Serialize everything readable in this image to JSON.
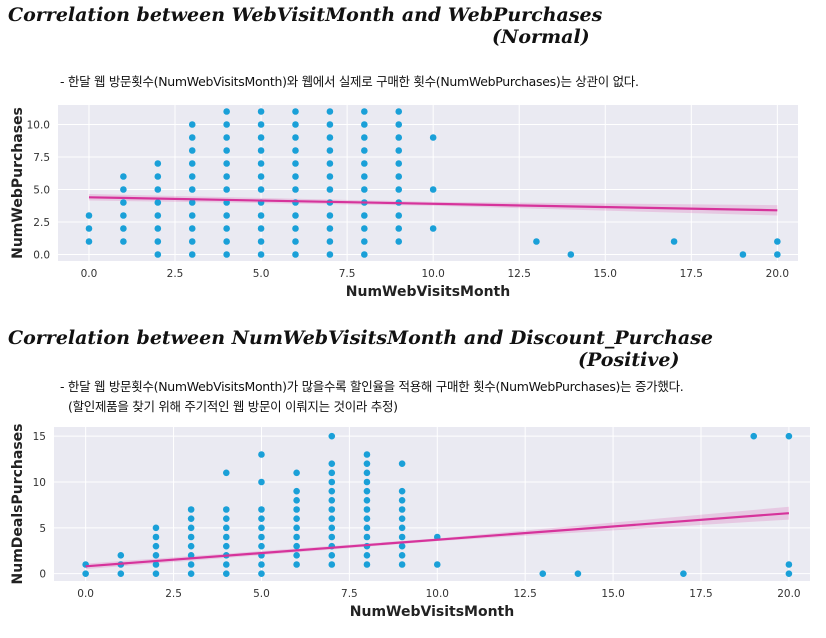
{
  "chart_data": [
    {
      "type": "scatter",
      "title_line1": "Correlation between WebVisitMonth and WebPurchases",
      "title_line2": "(Normal)",
      "notes": [
        "- 한달 웹 방문횟수(NumWebVisitsMonth)와 웹에서 실제로 구매한 횟수(NumWebPurchases)는 상관이 없다."
      ],
      "xlabel": "NumWebVisitsMonth",
      "ylabel": "NumWebPurchases",
      "xlim": [
        -0.9,
        20.6
      ],
      "ylim": [
        -0.5,
        11.5
      ],
      "xticks": [
        0.0,
        2.5,
        5.0,
        7.5,
        10.0,
        12.5,
        15.0,
        17.5,
        20.0
      ],
      "xtick_labels": [
        "0.0",
        "2.5",
        "5.0",
        "7.5",
        "10.0",
        "12.5",
        "15.0",
        "17.5",
        "20.0"
      ],
      "yticks": [
        0.0,
        2.5,
        5.0,
        7.5,
        10.0
      ],
      "ytick_labels": [
        "0.0",
        "2.5",
        "5.0",
        "7.5",
        "10.0"
      ],
      "grid": true,
      "point_color": "#1aa0d8",
      "regression_color": "#d6339b",
      "regression": {
        "x": [
          0,
          20
        ],
        "y": [
          4.4,
          3.4
        ],
        "ci": [
          [
            0,
            4.15,
            4.65
          ],
          [
            10,
            3.75,
            4.05
          ],
          [
            20,
            3.0,
            3.8
          ]
        ]
      },
      "points": [
        {
          "x": 0,
          "y": [
            1,
            2,
            3
          ]
        },
        {
          "x": 1,
          "y": [
            1,
            2,
            3,
            4,
            5,
            6
          ]
        },
        {
          "x": 2,
          "y": [
            0,
            1,
            2,
            3,
            4,
            5,
            6,
            7
          ]
        },
        {
          "x": 3,
          "y": [
            0,
            1,
            2,
            3,
            4,
            5,
            6,
            7,
            8,
            9,
            10
          ]
        },
        {
          "x": 4,
          "y": [
            0,
            1,
            2,
            3,
            4,
            5,
            6,
            7,
            8,
            9,
            10,
            11
          ]
        },
        {
          "x": 5,
          "y": [
            0,
            1,
            2,
            3,
            4,
            5,
            6,
            7,
            8,
            9,
            10,
            11
          ]
        },
        {
          "x": 6,
          "y": [
            0,
            1,
            2,
            3,
            4,
            5,
            6,
            7,
            8,
            9,
            10,
            11
          ]
        },
        {
          "x": 7,
          "y": [
            0,
            1,
            2,
            3,
            4,
            5,
            6,
            7,
            8,
            9,
            10,
            11
          ]
        },
        {
          "x": 8,
          "y": [
            0,
            1,
            2,
            3,
            4,
            5,
            6,
            7,
            8,
            9,
            10,
            11
          ]
        },
        {
          "x": 9,
          "y": [
            1,
            2,
            3,
            4,
            5,
            6,
            7,
            8,
            9,
            10,
            11
          ]
        },
        {
          "x": 10,
          "y": [
            2,
            5,
            9
          ]
        },
        {
          "x": 13,
          "y": [
            1
          ]
        },
        {
          "x": 14,
          "y": [
            0
          ]
        },
        {
          "x": 17,
          "y": [
            1
          ]
        },
        {
          "x": 19,
          "y": [
            0
          ]
        },
        {
          "x": 20,
          "y": [
            0,
            1
          ]
        }
      ]
    },
    {
      "type": "scatter",
      "title_line1": "Correlation between NumWebVisitsMonth and Discount_Purchase",
      "title_line2": "(Positive)",
      "notes": [
        "- 한달 웹 방문횟수(NumWebVisitsMonth)가 많을수록 할인율을 적용해 구매한 횟수(NumWebPurchases)는 증가했다.",
        "(할인제품을 찾기 위해 주기적인 웹 방문이 이뤄지는 것이라 추정)"
      ],
      "xlabel": "NumWebVisitsMonth",
      "ylabel": "NumDealsPurchases",
      "xlim": [
        -0.9,
        20.6
      ],
      "ylim": [
        -0.8,
        16.0
      ],
      "xticks": [
        0.0,
        2.5,
        5.0,
        7.5,
        10.0,
        12.5,
        15.0,
        17.5,
        20.0
      ],
      "xtick_labels": [
        "0.0",
        "2.5",
        "5.0",
        "7.5",
        "10.0",
        "12.5",
        "15.0",
        "17.5",
        "20.0"
      ],
      "yticks": [
        0,
        5,
        10,
        15
      ],
      "ytick_labels": [
        "0",
        "5",
        "10",
        "15"
      ],
      "grid": true,
      "point_color": "#1aa0d8",
      "regression_color": "#d6339b",
      "regression": {
        "x": [
          0,
          20
        ],
        "y": [
          0.8,
          6.6
        ],
        "ci": [
          [
            0,
            0.5,
            1.1
          ],
          [
            10,
            3.55,
            3.85
          ],
          [
            20,
            5.9,
            7.3
          ]
        ]
      },
      "points": [
        {
          "x": 0,
          "y": [
            0,
            1
          ]
        },
        {
          "x": 1,
          "y": [
            0,
            1,
            2
          ]
        },
        {
          "x": 2,
          "y": [
            0,
            1,
            2,
            3,
            4,
            5
          ]
        },
        {
          "x": 3,
          "y": [
            0,
            1,
            2,
            3,
            4,
            5,
            6,
            7
          ]
        },
        {
          "x": 4,
          "y": [
            0,
            1,
            2,
            3,
            4,
            5,
            6,
            7,
            11
          ]
        },
        {
          "x": 5,
          "y": [
            0,
            1,
            2,
            3,
            4,
            5,
            6,
            7,
            10,
            13
          ]
        },
        {
          "x": 6,
          "y": [
            1,
            2,
            3,
            4,
            5,
            6,
            7,
            8,
            9,
            11
          ]
        },
        {
          "x": 7,
          "y": [
            1,
            2,
            3,
            4,
            5,
            6,
            7,
            8,
            9,
            10,
            11,
            12,
            15
          ]
        },
        {
          "x": 8,
          "y": [
            1,
            2,
            3,
            4,
            5,
            6,
            7,
            8,
            9,
            10,
            11,
            12,
            13
          ]
        },
        {
          "x": 9,
          "y": [
            1,
            2,
            3,
            4,
            5,
            6,
            7,
            8,
            9,
            12
          ]
        },
        {
          "x": 10,
          "y": [
            1,
            4
          ]
        },
        {
          "x": 13,
          "y": [
            0
          ]
        },
        {
          "x": 14,
          "y": [
            0
          ]
        },
        {
          "x": 17,
          "y": [
            0
          ]
        },
        {
          "x": 19,
          "y": [
            15
          ]
        },
        {
          "x": 20,
          "y": [
            0,
            1,
            15
          ]
        }
      ]
    }
  ]
}
